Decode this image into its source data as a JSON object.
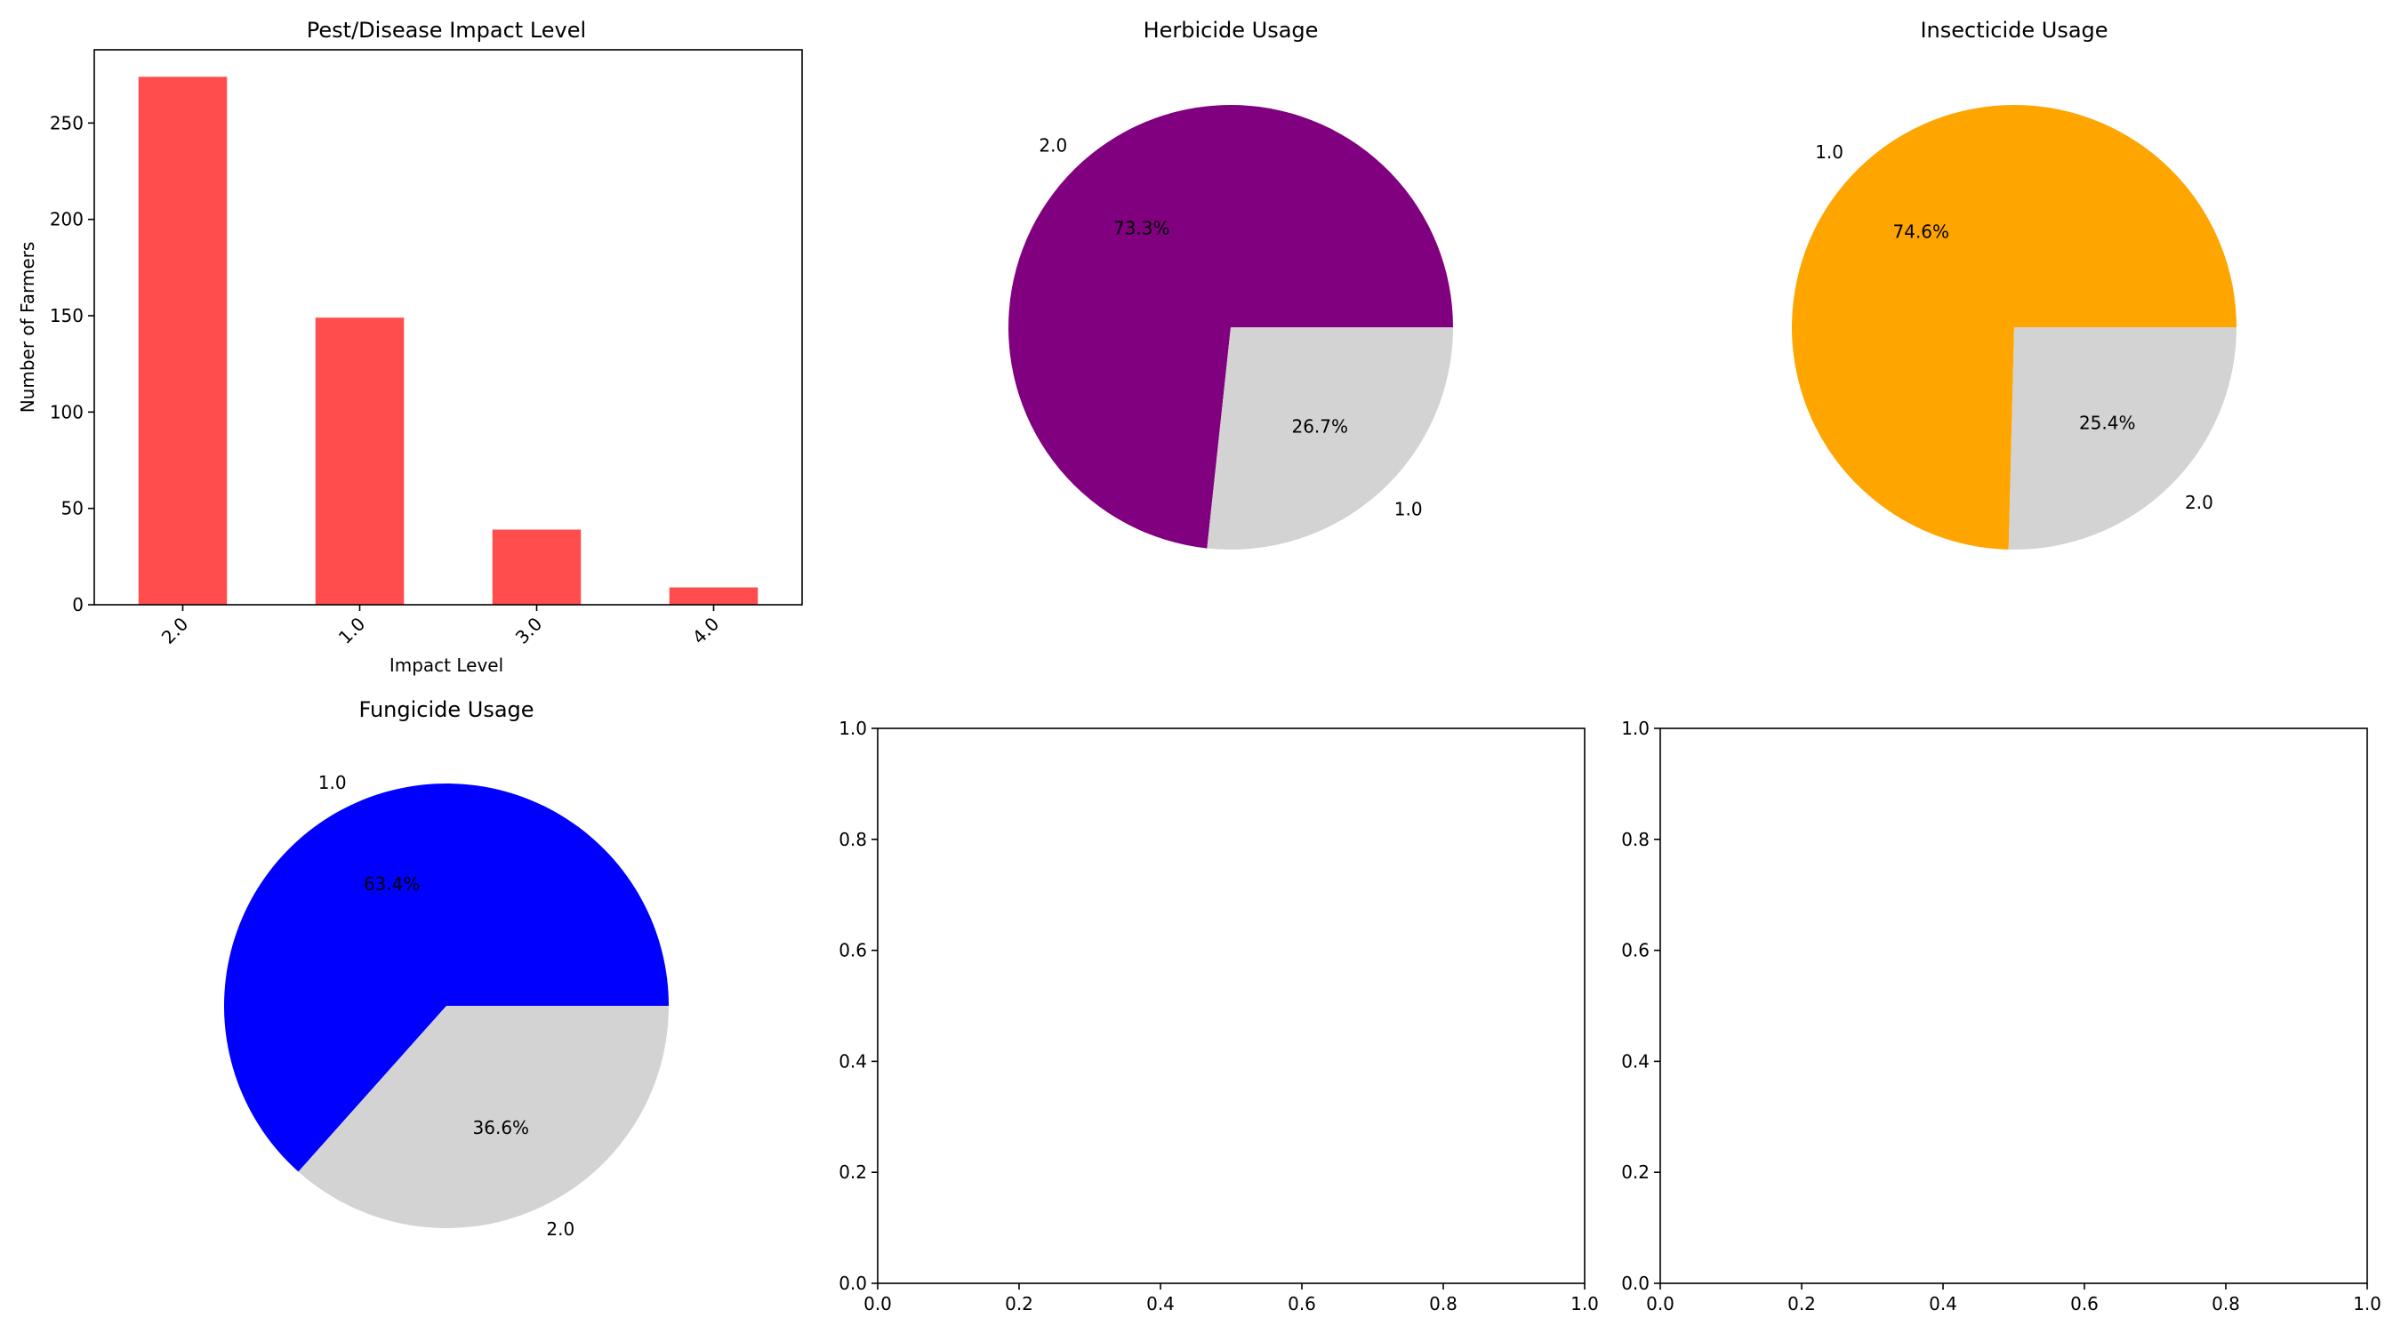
{
  "chart_data": [
    {
      "type": "bar",
      "title": "Pest/Disease Impact Level",
      "xlabel": "Impact Level",
      "ylabel": "Number of Farmers",
      "categories": [
        "2.0",
        "1.0",
        "3.0",
        "4.0"
      ],
      "values": [
        274,
        149,
        39,
        9
      ],
      "ylim": [
        0,
        288
      ],
      "yticks": [
        "0",
        "50",
        "100",
        "150",
        "200",
        "250"
      ],
      "color": "#ff4d4d",
      "grid": false
    },
    {
      "type": "pie",
      "title": "Herbicide Usage",
      "labels": [
        "2.0",
        "1.0"
      ],
      "values": [
        73.3,
        26.7
      ],
      "pct_labels": [
        "73.3%",
        "26.7%"
      ],
      "colors": [
        "#800080",
        "#d3d3d3"
      ]
    },
    {
      "type": "pie",
      "title": "Insecticide Usage",
      "labels": [
        "1.0",
        "2.0"
      ],
      "values": [
        74.6,
        25.4
      ],
      "pct_labels": [
        "74.6%",
        "25.4%"
      ],
      "colors": [
        "#ffa500",
        "#d3d3d3"
      ]
    },
    {
      "type": "pie",
      "title": "Fungicide Usage",
      "labels": [
        "1.0",
        "2.0"
      ],
      "values": [
        63.4,
        36.6
      ],
      "pct_labels": [
        "63.4%",
        "36.6%"
      ],
      "colors": [
        "#0000ff",
        "#d3d3d3"
      ]
    },
    {
      "type": "scatter",
      "title": "",
      "xlim": [
        0,
        1
      ],
      "ylim": [
        0,
        1
      ],
      "xticks": [
        "0.0",
        "0.2",
        "0.4",
        "0.6",
        "0.8",
        "1.0"
      ],
      "yticks": [
        "0.0",
        "0.2",
        "0.4",
        "0.6",
        "0.8",
        "1.0"
      ],
      "values": []
    },
    {
      "type": "scatter",
      "title": "",
      "xlim": [
        0,
        1
      ],
      "ylim": [
        0,
        1
      ],
      "xticks": [
        "0.0",
        "0.2",
        "0.4",
        "0.6",
        "0.8",
        "1.0"
      ],
      "yticks": [
        "0.0",
        "0.2",
        "0.4",
        "0.6",
        "0.8",
        "1.0"
      ],
      "values": []
    }
  ]
}
